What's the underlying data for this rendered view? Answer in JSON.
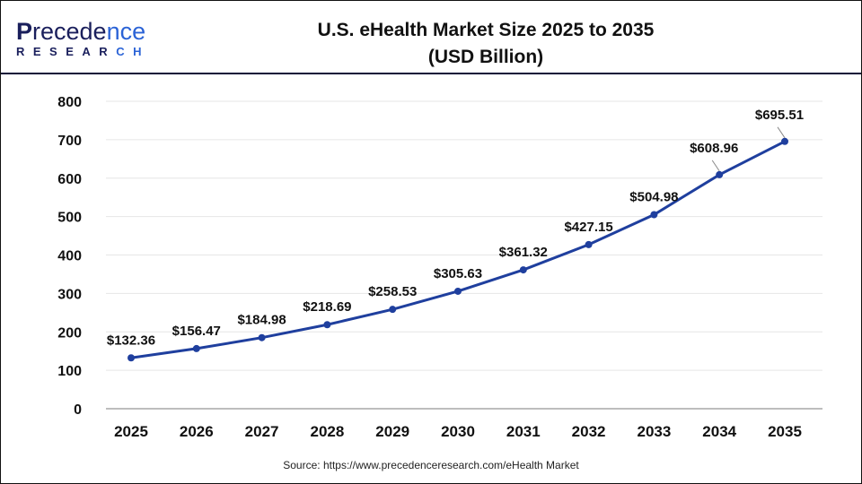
{
  "logo": {
    "line1_a": "P",
    "line1_b": "recede",
    "line1_c": "nce",
    "line2_a": "RESEAR",
    "line2_b": "CH"
  },
  "title_line1": "U.S. eHealth Market Size 2025 to 2035",
  "title_line2": "(USD Billion)",
  "source": "Source: https://www.precedenceresearch.com/eHealth Market",
  "colors": {
    "line": "#1f3f9e",
    "grid": "#e6e6e6",
    "axis": "#bdbdbd"
  },
  "chart_data": {
    "type": "line",
    "title": "U.S. eHealth Market Size 2025 to 2035 (USD Billion)",
    "categories": [
      "2025",
      "2026",
      "2027",
      "2028",
      "2029",
      "2030",
      "2031",
      "2032",
      "2033",
      "2034",
      "2035"
    ],
    "values": [
      132.36,
      156.47,
      184.98,
      218.69,
      258.53,
      305.63,
      361.32,
      427.15,
      504.98,
      608.96,
      695.51
    ],
    "labels": [
      "$132.36",
      "$156.47",
      "$184.98",
      "$218.69",
      "$258.53",
      "$305.63",
      "$361.32",
      "$427.15",
      "$504.98",
      "$608.96",
      "$695.51"
    ],
    "yticks": [
      "0",
      "100",
      "200",
      "300",
      "400",
      "500",
      "600",
      "700",
      "800"
    ],
    "ylim": [
      0,
      800
    ],
    "grid": true,
    "legend": "none"
  }
}
